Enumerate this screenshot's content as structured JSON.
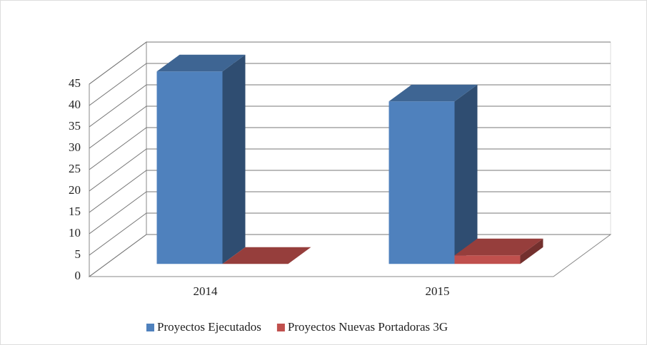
{
  "chart_data": {
    "type": "bar3d",
    "categories": [
      "2014",
      "2015"
    ],
    "series": [
      {
        "name": "Proyectos Ejecutados",
        "color": "#4f81bd",
        "values": [
          45,
          38
        ]
      },
      {
        "name": "Proyectos Nuevas Portadoras 3G",
        "color": "#c0504d",
        "values": [
          0,
          2
        ]
      }
    ],
    "ylim": [
      0,
      45
    ],
    "yticks": [
      0,
      5,
      10,
      15,
      20,
      25,
      30,
      35,
      40,
      45
    ],
    "grid": true,
    "legend": "bottom"
  }
}
